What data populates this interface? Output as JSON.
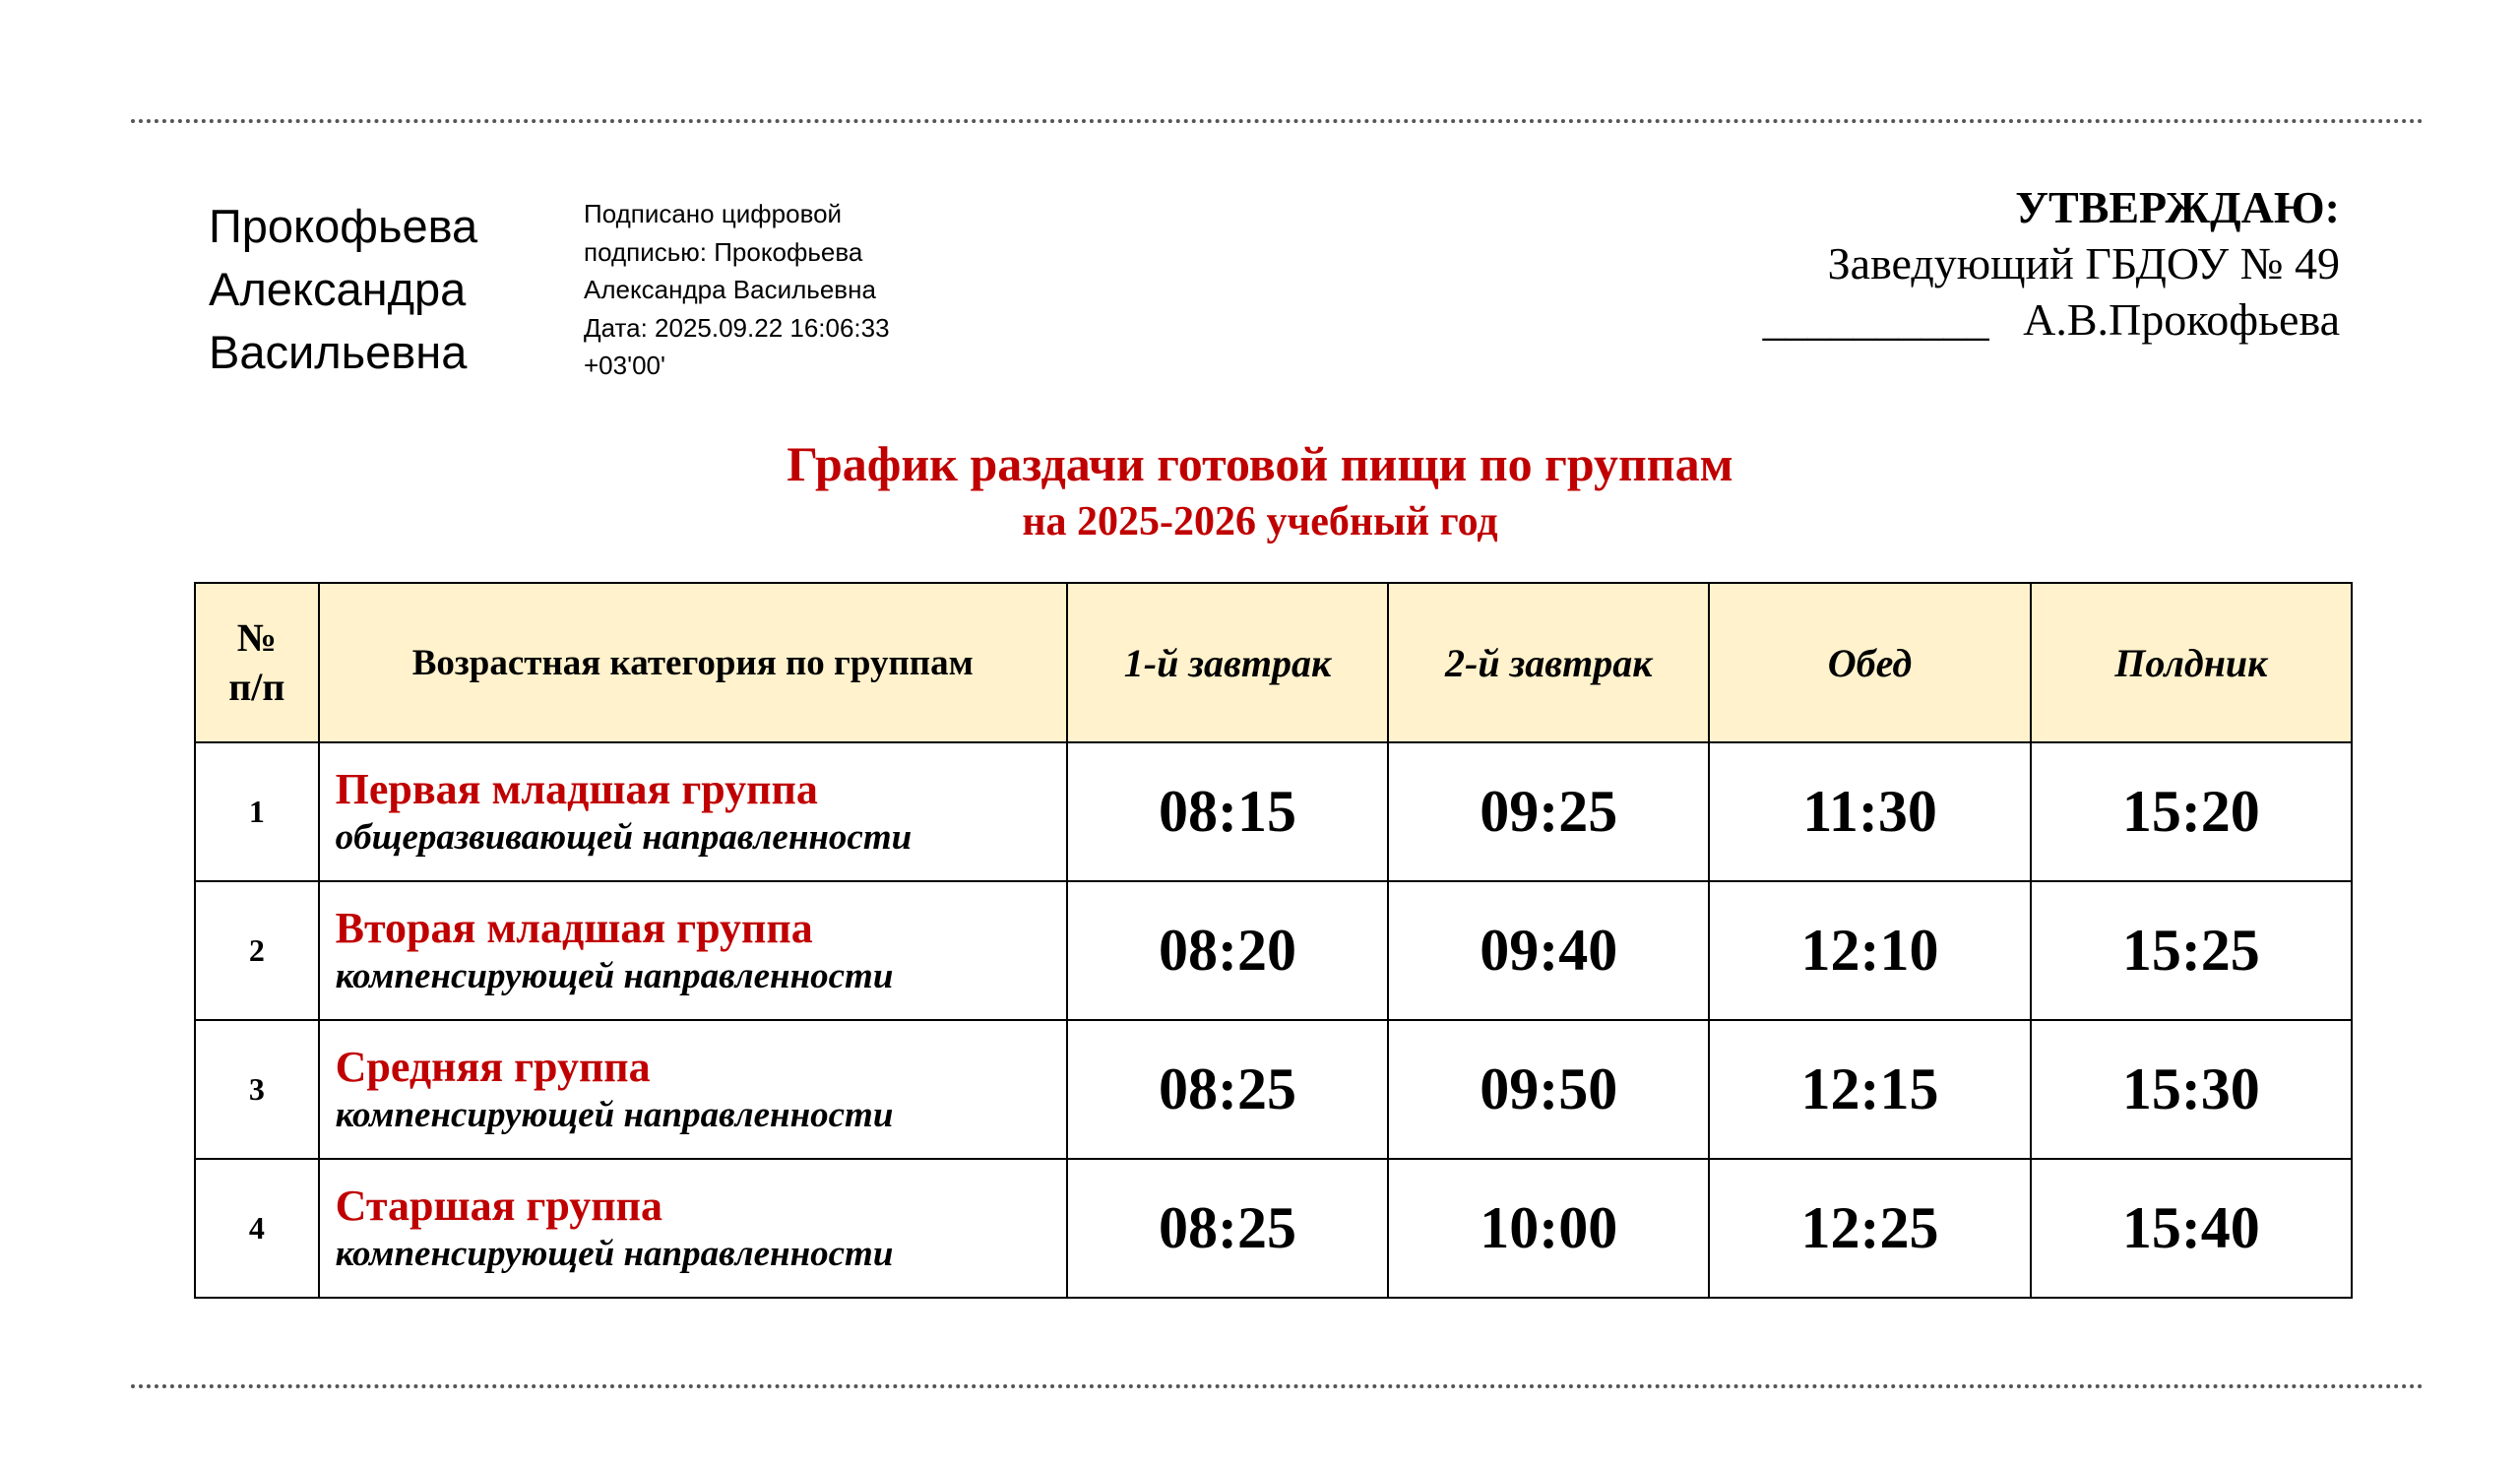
{
  "signature": {
    "name_lines": [
      "Прокофьева",
      "Александра",
      "Васильевна"
    ],
    "info_lines": [
      "Подписано цифровой",
      "подписью: Прокофьева",
      "Александра Васильевна",
      "Дата: 2025.09.22 16:06:33",
      "+03'00'"
    ]
  },
  "approval": {
    "heading": "УТВЕРЖДАЮ:",
    "position": "Заведующий ГБДОУ № 49",
    "signature_line": "__________   А.В.Прокофьева"
  },
  "title": "График раздачи готовой пищи по группам",
  "subtitle": "на 2025-2026 учебный год",
  "table": {
    "headers": [
      "№\nп/п",
      "Возрастная категория по группам",
      "1-й завтрак",
      "2-й завтрак",
      "Обед",
      "Полдник"
    ],
    "rows": [
      {
        "n": "1",
        "group": "Первая младшая группа",
        "focus": "общеразвивающей направленности",
        "times": [
          "08:15",
          "09:25",
          "11:30",
          "15:20"
        ]
      },
      {
        "n": "2",
        "group": "Вторая младшая группа",
        "focus": "компенсирующей направленности",
        "times": [
          "08:20",
          "09:40",
          "12:10",
          "15:25"
        ]
      },
      {
        "n": "3",
        "group": "Средняя группа",
        "focus": "компенсирующей направленности",
        "times": [
          "08:25",
          "09:50",
          "12:15",
          "15:30"
        ]
      },
      {
        "n": "4",
        "group": "Старшая группа",
        "focus": "компенсирующей направленности",
        "times": [
          "08:25",
          "10:00",
          "12:25",
          "15:40"
        ]
      }
    ]
  },
  "colors": {
    "accent_red": "#c00000",
    "header_bg": "#fff2cc"
  }
}
